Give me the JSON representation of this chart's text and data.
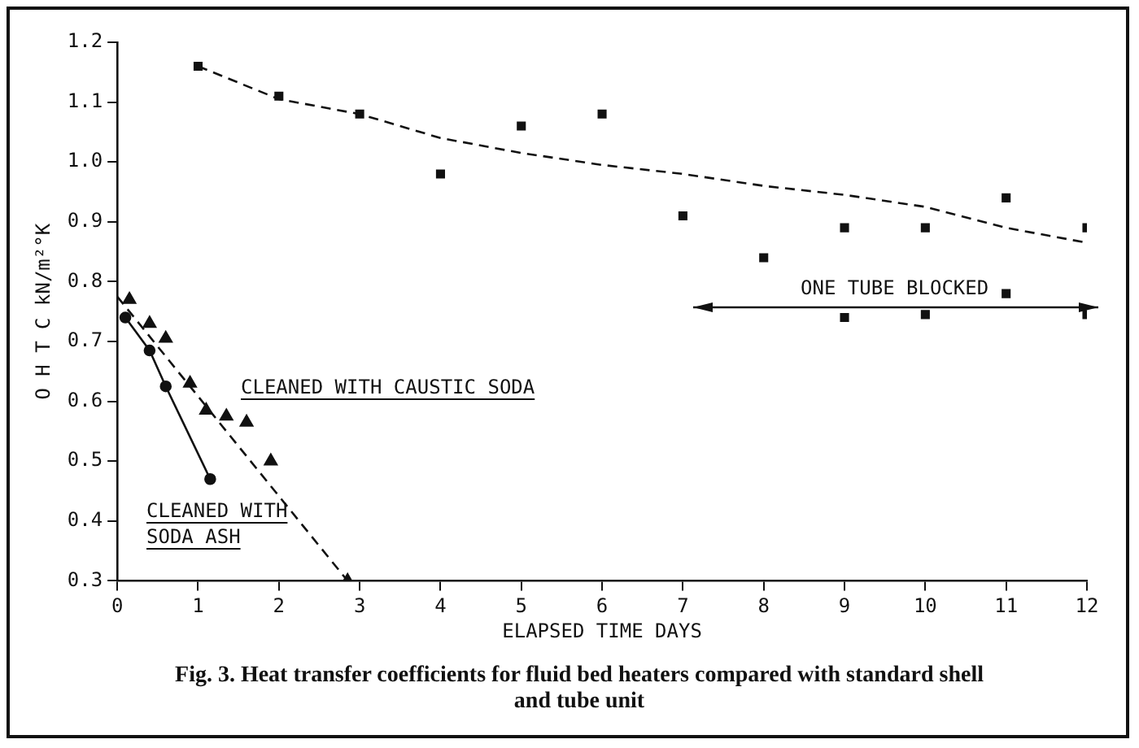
{
  "chart_data": {
    "type": "scatter",
    "xlabel": "ELAPSED TIME DAYS",
    "ylabel": "O H T C kN/m²°K",
    "xlim": [
      0,
      12
    ],
    "xticks": [
      0,
      1,
      2,
      3,
      4,
      5,
      6,
      7,
      8,
      9,
      10,
      11,
      12
    ],
    "ylim": [
      0.3,
      1.2
    ],
    "yticks": [
      0.3,
      0.4,
      0.5,
      0.6,
      0.7,
      0.8,
      0.9,
      {
        "value": 1.0,
        "label": "1.0"
      },
      1.1,
      1.2
    ],
    "grid": false,
    "legend": false,
    "series": [
      {
        "type": "scatter",
        "marker": "square",
        "color": "#111111",
        "x": [
          1,
          2,
          3,
          4,
          5,
          6,
          7,
          8,
          9,
          9,
          10,
          10,
          11,
          11,
          12,
          12
        ],
        "values": [
          1.16,
          1.11,
          1.08,
          0.98,
          1.06,
          1.08,
          0.91,
          0.84,
          0.89,
          0.74,
          0.89,
          0.745,
          0.94,
          0.78,
          0.89,
          0.745
        ]
      },
      {
        "type": "line",
        "marker": "none",
        "line_style": "dashed",
        "color": "#111111",
        "x": [
          1,
          2,
          3,
          4,
          5,
          6,
          7,
          8,
          9,
          10,
          11,
          12
        ],
        "values": [
          1.16,
          1.105,
          1.08,
          1.04,
          1.015,
          0.995,
          0.98,
          0.96,
          0.945,
          0.925,
          0.89,
          0.865
        ]
      },
      {
        "type": "scatter",
        "marker": "triangle",
        "color": "#111111",
        "x": [
          0.15,
          0.4,
          0.6,
          0.9,
          1.1,
          1.35,
          1.6,
          1.9,
          2.85
        ],
        "values": [
          0.77,
          0.73,
          0.705,
          0.63,
          0.585,
          0.575,
          0.565,
          0.5,
          0.3
        ]
      },
      {
        "type": "line",
        "marker": "none",
        "line_style": "dashed",
        "color": "#111111",
        "x": [
          0,
          2.85
        ],
        "values": [
          0.775,
          0.3
        ]
      },
      {
        "type": "line",
        "marker": "circle",
        "line_style": "solid",
        "color": "#111111",
        "x": [
          0.1,
          0.4,
          0.6,
          1.15
        ],
        "values": [
          0.74,
          0.685,
          0.625,
          0.47
        ]
      }
    ],
    "annotations": [
      "CLEANED WITH CAUSTIC SODA",
      "CLEANED WITH SODA ASH",
      "ONE TUBE BLOCKED",
      "Fig. 3. Heat transfer coefficients for fluid bed heaters compared with standard shell and tube unit"
    ]
  }
}
